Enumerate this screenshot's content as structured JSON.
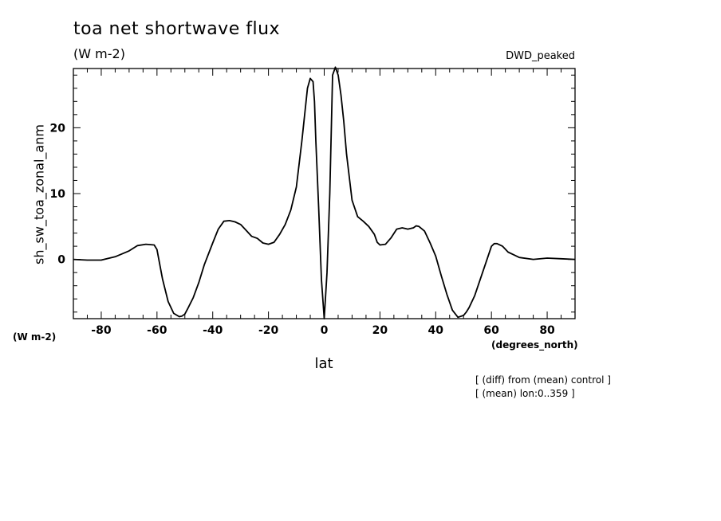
{
  "chart_data": {
    "type": "line",
    "title": "toa net shortwave flux",
    "units": "(W m-2)",
    "run_name": "DWD_peaked",
    "ylabel": "sh_sw_toa_zonal_anm",
    "yunits": "(W m-2)",
    "xlabel": "lat",
    "xunits": "(degrees_north)",
    "notes": [
      "[ (diff) from (mean) control ]",
      "[ (mean) lon:0..359 ]"
    ],
    "xlim": [
      -90,
      90
    ],
    "ylim": [
      -9,
      29
    ],
    "xticks": [
      -80,
      -60,
      -40,
      -20,
      0,
      20,
      40,
      60,
      80
    ],
    "yticks": [
      0,
      10,
      20
    ],
    "grid": false,
    "series": [
      {
        "x": [
          -90,
          -85,
          -80,
          -75,
          -70,
          -67,
          -64,
          -61,
          -60,
          -58,
          -56,
          -54,
          -52,
          -51,
          -50,
          -49,
          -47,
          -45,
          -43,
          -40,
          -38,
          -36,
          -34,
          -32,
          -30,
          -28,
          -26,
          -24,
          -22,
          -20,
          -18,
          -16,
          -14,
          -12,
          -10,
          -8,
          -6,
          -5,
          -4,
          -3.5,
          -3,
          -2,
          -1,
          0,
          1,
          2,
          3,
          4,
          5,
          6,
          7,
          8,
          10,
          12,
          14,
          16,
          18,
          19,
          20,
          22,
          24,
          26,
          28,
          30,
          32,
          33,
          34,
          36,
          38,
          40,
          42,
          44,
          46,
          48,
          50,
          51,
          52,
          54,
          56,
          58,
          60,
          61,
          62,
          64,
          66,
          68,
          70,
          75,
          80,
          85,
          90
        ],
        "y": [
          0,
          -0.1,
          -0.1,
          0.4,
          1.3,
          2.1,
          2.3,
          2.2,
          1.5,
          -3,
          -6.4,
          -8.2,
          -8.7,
          -8.6,
          -8.3,
          -7.5,
          -5.8,
          -3.5,
          -0.8,
          2.5,
          4.6,
          5.8,
          5.9,
          5.7,
          5.3,
          4.4,
          3.5,
          3.2,
          2.5,
          2.3,
          2.6,
          3.8,
          5.3,
          7.5,
          11,
          18,
          26,
          27.5,
          27,
          24,
          18,
          8,
          -3,
          -9,
          -2,
          10,
          28,
          29.2,
          28,
          25,
          21,
          16,
          9,
          6.5,
          5.8,
          5,
          3.8,
          2.6,
          2.2,
          2.3,
          3.3,
          4.6,
          4.8,
          4.6,
          4.8,
          5.1,
          5,
          4.3,
          2.5,
          0.5,
          -2.5,
          -5.3,
          -7.7,
          -8.8,
          -8.5,
          -8,
          -7.3,
          -5.5,
          -3,
          -0.5,
          2,
          2.4,
          2.4,
          2,
          1.1,
          0.7,
          0.3,
          0,
          0.2,
          0.1,
          0
        ]
      }
    ]
  }
}
